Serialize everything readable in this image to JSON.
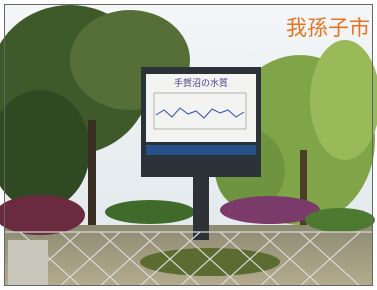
{
  "caption": "我孫子市",
  "sign": {
    "title": "手賀沼の水質"
  }
}
